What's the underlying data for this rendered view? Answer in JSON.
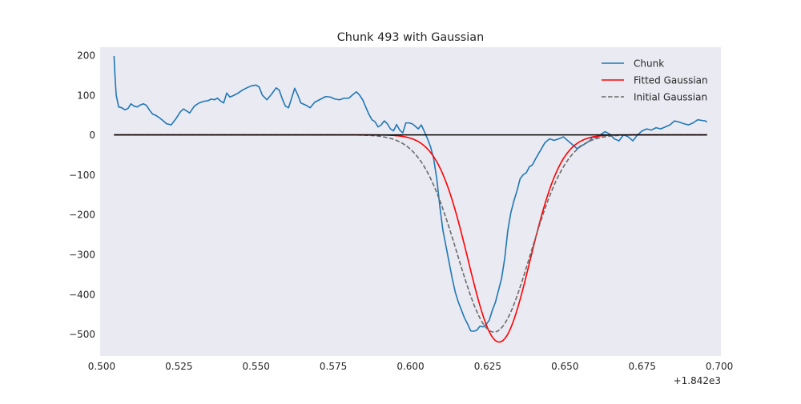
{
  "chart_data": {
    "type": "line",
    "title": "Chunk 493 with Gaussian",
    "xlabel": "",
    "ylabel": "",
    "x_offset_label": "+1.842e3",
    "xlim": [
      0.4995,
      0.7005
    ],
    "ylim": [
      -555,
      220
    ],
    "grid": false,
    "legend_position": "top-right",
    "x_tick_values": [
      0.5,
      0.525,
      0.55,
      0.575,
      0.6,
      0.625,
      0.65,
      0.675,
      0.7
    ],
    "x_tick_labels": [
      "0.500",
      "0.525",
      "0.550",
      "0.575",
      "0.600",
      "0.625",
      "0.650",
      "0.675",
      "0.700"
    ],
    "y_tick_values": [
      200,
      100,
      0,
      -100,
      -200,
      -300,
      -400,
      -500
    ],
    "y_tick_labels": [
      "200",
      "100",
      "0",
      "−100",
      "−200",
      "−300",
      "−400",
      "−500"
    ],
    "background_color": "#eaeaf2",
    "series": [
      {
        "name": "Chunk",
        "color": "#1f77b4",
        "style": "solid",
        "x": [
          0.504,
          0.5043,
          0.5047,
          0.5055,
          0.5065,
          0.5075,
          0.5085,
          0.5095,
          0.5105,
          0.5115,
          0.5125,
          0.5135,
          0.5145,
          0.5155,
          0.5165,
          0.5175,
          0.5185,
          0.5195,
          0.521,
          0.5225,
          0.524,
          0.5255,
          0.5265,
          0.5275,
          0.5285,
          0.53,
          0.5315,
          0.533,
          0.5345,
          0.5355,
          0.5365,
          0.5375,
          0.5385,
          0.5395,
          0.5405,
          0.5415,
          0.5425,
          0.544,
          0.5455,
          0.547,
          0.5485,
          0.55,
          0.551,
          0.552,
          0.5535,
          0.555,
          0.5565,
          0.5575,
          0.5585,
          0.5595,
          0.5605,
          0.5615,
          0.5625,
          0.5635,
          0.5645,
          0.566,
          0.5675,
          0.569,
          0.57,
          0.571,
          0.5725,
          0.574,
          0.5755,
          0.577,
          0.5785,
          0.58,
          0.5815,
          0.5825,
          0.5835,
          0.5845,
          0.5855,
          0.5865,
          0.5875,
          0.5885,
          0.5895,
          0.5905,
          0.5915,
          0.5925,
          0.5935,
          0.5945,
          0.5955,
          0.5965,
          0.5975,
          0.5985,
          0.5995,
          0.6005,
          0.6015,
          0.6025,
          0.6035,
          0.6045,
          0.6055,
          0.6065,
          0.6075,
          0.6085,
          0.6095,
          0.6105,
          0.6115,
          0.6125,
          0.6135,
          0.6145,
          0.6155,
          0.6165,
          0.6175,
          0.6185,
          0.6195,
          0.6205,
          0.6215,
          0.6225,
          0.6235,
          0.6245,
          0.6255,
          0.6265,
          0.6275,
          0.6285,
          0.6295,
          0.6305,
          0.6315,
          0.6325,
          0.6335,
          0.6345,
          0.6355,
          0.6365,
          0.6375,
          0.6385,
          0.6395,
          0.6405,
          0.642,
          0.6435,
          0.645,
          0.6465,
          0.648,
          0.6495,
          0.651,
          0.6525,
          0.654,
          0.655,
          0.656,
          0.657,
          0.658,
          0.659,
          0.66,
          0.6615,
          0.663,
          0.6645,
          0.666,
          0.6675,
          0.669,
          0.6705,
          0.672,
          0.6735,
          0.675,
          0.6765,
          0.678,
          0.6795,
          0.681,
          0.6825,
          0.684,
          0.6855,
          0.687,
          0.6885,
          0.69,
          0.6915,
          0.693,
          0.6945,
          0.6955,
          0.696
        ],
        "y": [
          198,
          150,
          100,
          70,
          68,
          63,
          66,
          78,
          72,
          70,
          75,
          78,
          74,
          62,
          52,
          49,
          44,
          38,
          28,
          25,
          40,
          58,
          65,
          60,
          55,
          72,
          80,
          84,
          86,
          90,
          88,
          92,
          85,
          80,
          105,
          95,
          98,
          104,
          112,
          118,
          123,
          125,
          120,
          100,
          88,
          102,
          118,
          112,
          90,
          72,
          68,
          92,
          117,
          100,
          80,
          75,
          68,
          82,
          86,
          90,
          96,
          95,
          90,
          88,
          92,
          92,
          102,
          108,
          100,
          88,
          70,
          52,
          38,
          33,
          20,
          25,
          35,
          28,
          15,
          10,
          26,
          12,
          5,
          30,
          30,
          28,
          22,
          15,
          25,
          8,
          -10,
          -30,
          -60,
          -110,
          -180,
          -240,
          -280,
          -320,
          -360,
          -395,
          -420,
          -440,
          -460,
          -475,
          -492,
          -493,
          -490,
          -480,
          -482,
          -476,
          -465,
          -440,
          -420,
          -390,
          -360,
          -310,
          -240,
          -195,
          -165,
          -140,
          -110,
          -100,
          -95,
          -80,
          -75,
          -60,
          -40,
          -20,
          -10,
          -14,
          -10,
          -5,
          -15,
          -25,
          -35,
          -28,
          -25,
          -20,
          -15,
          -5,
          -8,
          0,
          8,
          2,
          -10,
          -15,
          0,
          -5,
          -15,
          0,
          10,
          15,
          12,
          18,
          15,
          20,
          25,
          35,
          32,
          28,
          25,
          30,
          38,
          36,
          35,
          32
        ],
        "y_comment": ""
      },
      {
        "name": "Fitted Gaussian",
        "color": "#ff0000",
        "style": "solid",
        "amplitude": -520,
        "mean": 0.6287,
        "sigma": 0.01,
        "x_range": [
          0.504,
          0.696
        ]
      },
      {
        "name": "Initial Gaussian",
        "color": "#6b6b6b",
        "style": "dashed",
        "amplitude": -495,
        "mean": 0.627,
        "sigma": 0.0118,
        "x_range": [
          0.504,
          0.696
        ]
      },
      {
        "name": "",
        "color": "#000000",
        "style": "solid",
        "x": [
          0.504,
          0.696
        ],
        "y": [
          0,
          0
        ]
      }
    ]
  }
}
